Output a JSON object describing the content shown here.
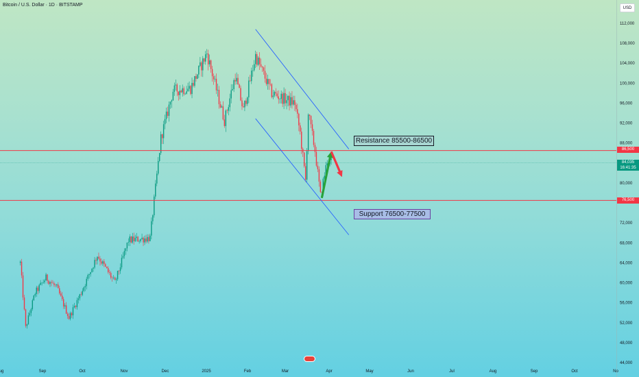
{
  "header": {
    "title": "Bitcoin / U.S. Dollar · 1D · BITSTAMP",
    "currency_button": "USD"
  },
  "colors": {
    "up": "#089981",
    "down": "#f23645",
    "channel": "#2962ff",
    "level": "#f23645",
    "arrow_up": "#27a33a",
    "arrow_down": "#f23645"
  },
  "chart_data": {
    "type": "candlestick",
    "title": "Bitcoin / U.S. Dollar · 1D · BITSTAMP",
    "x_ticks": [
      "Aug",
      "Sep",
      "Oct",
      "Nov",
      "Dec",
      "2025",
      "Feb",
      "Mar",
      "Apr",
      "May",
      "Jun",
      "Jul",
      "Aug",
      "Sep",
      "Oct",
      "No"
    ],
    "y_ticks": [
      112000,
      108000,
      104000,
      100000,
      96000,
      92000,
      88000,
      80000,
      72000,
      68000,
      64000,
      60000,
      56000,
      52000,
      48000,
      44000
    ],
    "y_tick_labels": [
      "112,000",
      "108,000",
      "104,000",
      "100,000",
      "96,000",
      "92,000",
      "88,000",
      "80,000",
      "72,000",
      "68,000",
      "64,000",
      "60,000",
      "56,000",
      "52,000",
      "48,000",
      "44,000"
    ],
    "ylim": [
      44000,
      114000
    ],
    "price_profile": [
      [
        "2024-08-01",
        64000
      ],
      [
        "2024-08-05",
        51000
      ],
      [
        "2024-08-12",
        58000
      ],
      [
        "2024-08-20",
        61000
      ],
      [
        "2024-08-28",
        59000
      ],
      [
        "2024-09-06",
        53000
      ],
      [
        "2024-09-15",
        58000
      ],
      [
        "2024-09-27",
        65500
      ],
      [
        "2024-10-10",
        60000
      ],
      [
        "2024-10-20",
        68500
      ],
      [
        "2024-11-05",
        69000
      ],
      [
        "2024-11-13",
        89000
      ],
      [
        "2024-11-22",
        98500
      ],
      [
        "2024-12-05",
        99000
      ],
      [
        "2024-12-17",
        106000
      ],
      [
        "2024-12-30",
        92500
      ],
      [
        "2025-01-07",
        101500
      ],
      [
        "2025-01-13",
        94500
      ],
      [
        "2025-01-22",
        105500
      ],
      [
        "2025-02-03",
        98000
      ],
      [
        "2025-02-15",
        96500
      ],
      [
        "2025-02-20",
        96000
      ],
      [
        "2025-02-24",
        90000
      ],
      [
        "2025-02-28",
        80500
      ],
      [
        "2025-03-02",
        94000
      ],
      [
        "2025-03-07",
        86500
      ],
      [
        "2025-03-11",
        77500
      ],
      [
        "2025-03-16",
        84500
      ],
      [
        "2025-03-19",
        84035
      ]
    ],
    "levels": [
      {
        "name": "Resistance 85500-86500",
        "value": 86500,
        "tag": "86,500"
      },
      {
        "name": "Support 76500-77500",
        "value": 76500,
        "tag": "76,500"
      }
    ],
    "last_price": {
      "value": 84035,
      "label": "84,035",
      "countdown": "16:41:35"
    },
    "channel": {
      "upper": [
        [
          "2025-01-22",
          110800
        ],
        [
          "2025-04-01",
          86800
        ]
      ],
      "lower": [
        [
          "2025-01-22",
          92900
        ],
        [
          "2025-04-01",
          69600
        ]
      ]
    },
    "projection": {
      "up": [
        [
          "2025-03-12",
          77000
        ],
        [
          "2025-03-19",
          86300
        ]
      ],
      "down": [
        [
          "2025-03-19",
          86300
        ],
        [
          "2025-03-27",
          81200
        ]
      ]
    }
  },
  "annotations": {
    "resistance_label": "Resistance 85500-86500",
    "support_label": "Support 76500-77500"
  }
}
